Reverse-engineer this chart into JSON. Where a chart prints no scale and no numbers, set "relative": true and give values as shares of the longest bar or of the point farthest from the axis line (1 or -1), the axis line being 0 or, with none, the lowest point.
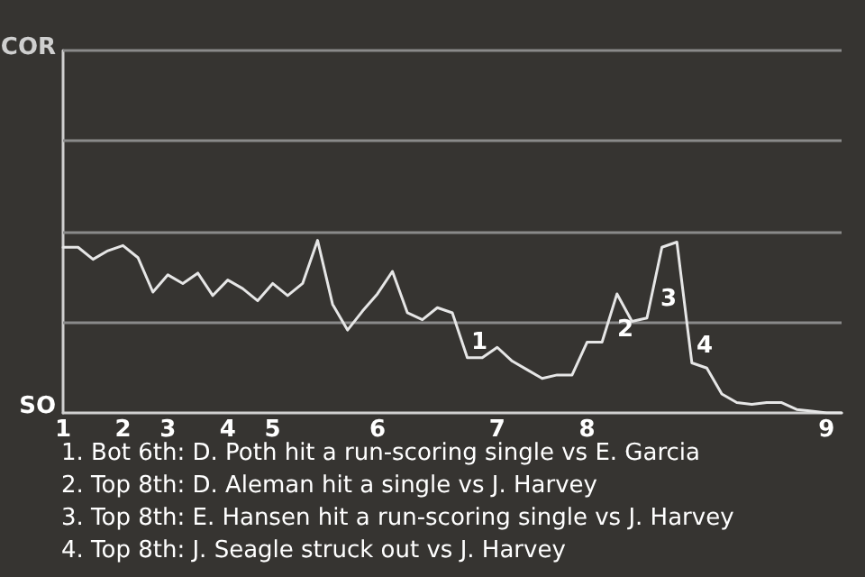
{
  "chart_data": {
    "type": "line",
    "relative": true,
    "categories": [
      "1",
      null,
      null,
      null,
      "2",
      null,
      null,
      "3",
      null,
      null,
      null,
      "4",
      null,
      null,
      "5",
      null,
      null,
      null,
      null,
      null,
      null,
      "6",
      null,
      null,
      null,
      null,
      null,
      null,
      null,
      "7",
      null,
      null,
      null,
      null,
      null,
      "8",
      null,
      null,
      null,
      null,
      null,
      null,
      null,
      null,
      null,
      null,
      null,
      null,
      null,
      null,
      null,
      "9",
      null
    ],
    "series": [
      {
        "color": "#e6e6e6",
        "values": [
          0.96,
          0.96,
          0.89,
          0.94,
          0.97,
          0.9,
          0.7,
          0.8,
          0.75,
          0.81,
          0.68,
          0.77,
          0.72,
          0.65,
          0.75,
          0.68,
          0.75,
          1,
          0.63,
          0.48,
          0.59,
          0.69,
          0.82,
          0.58,
          0.54,
          0.61,
          0.58,
          0.32,
          0.32,
          0.38,
          0.3,
          0.25,
          0.2,
          0.22,
          0.22,
          0.41,
          0.41,
          0.69,
          0.53,
          0.55,
          0.96,
          0.99,
          0.29,
          0.26,
          0.11,
          0.06,
          0.05,
          0.06,
          0.06,
          0.02,
          0.01,
          0,
          0
        ]
      }
    ],
    "marker": "none",
    "line_style": "solid",
    "ref_lines": [
      {
        "axis": "y",
        "value": 0.53,
        "color": "#8a8a8a"
      },
      {
        "axis": "y",
        "value": 1.05,
        "color": "#8a8a8a"
      },
      {
        "axis": "y",
        "value": 1.58,
        "color": "#8a8a8a"
      },
      {
        "axis": "y",
        "value": 2.1,
        "color": "#8a8a8a"
      }
    ],
    "annotations": [
      "COR",
      "SO",
      "1",
      "2",
      "3",
      "4",
      "1. Bot 6th: D. Poth hit a run-scoring single vs E. Garcia",
      "2. Top 8th: D. Aleman hit a single vs J. Harvey",
      "3. Top 8th: E. Hansen hit a run-scoring single vs J. Harvey",
      "4. Top 8th: J. Seagle struck out vs J. Harvey"
    ]
  }
}
